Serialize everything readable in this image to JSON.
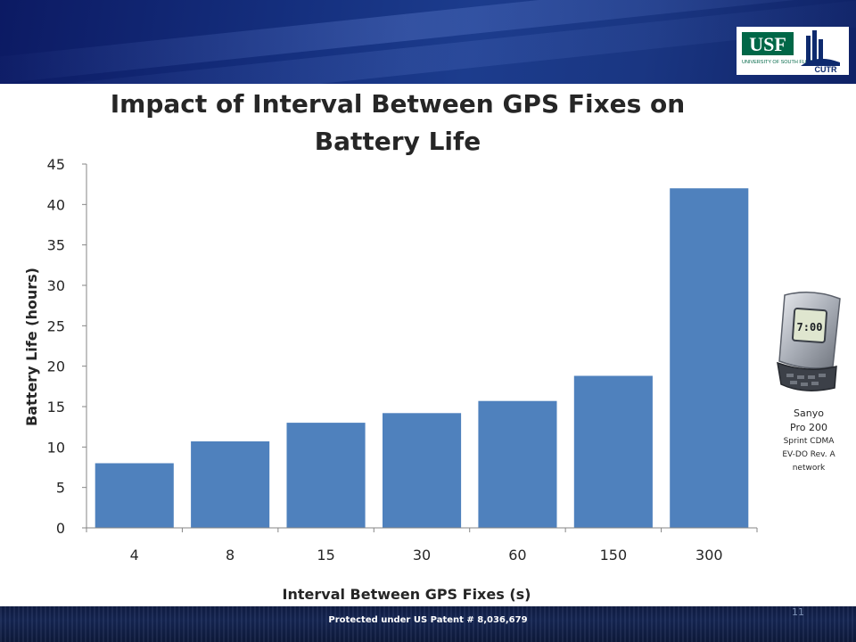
{
  "slide": {
    "footer_text": "Protected under US Patent # 8,036,679",
    "slide_number": "11",
    "logo": {
      "usf_text": "USF",
      "usf_sub": "UNIVERSITY OF SOUTH FLORIDA",
      "cutr_text": "CUTR"
    }
  },
  "phone": {
    "screen_time": "7:00",
    "caption_line1": "Sanyo",
    "caption_line2": "Pro 200",
    "caption_line3": "Sprint CDMA",
    "caption_line4": "EV-DO Rev. A",
    "caption_line5": "network"
  },
  "colors": {
    "bar": "#4f81bd",
    "axis": "#868686",
    "text": "#262626",
    "header": "#17317f"
  },
  "chart_data": {
    "type": "bar",
    "title": "Impact of Interval Between GPS Fixes on Battery Life",
    "xlabel": "Interval Between GPS Fixes (s)",
    "ylabel": "Battery Life (hours)",
    "categories": [
      "4",
      "8",
      "15",
      "30",
      "60",
      "150",
      "300"
    ],
    "values": [
      8,
      10.7,
      13,
      14.2,
      15.7,
      18.8,
      42
    ],
    "ylim": [
      0,
      45
    ],
    "yticks": [
      0,
      5,
      10,
      15,
      20,
      25,
      30,
      35,
      40,
      45
    ],
    "grid": false,
    "legend": "none"
  }
}
